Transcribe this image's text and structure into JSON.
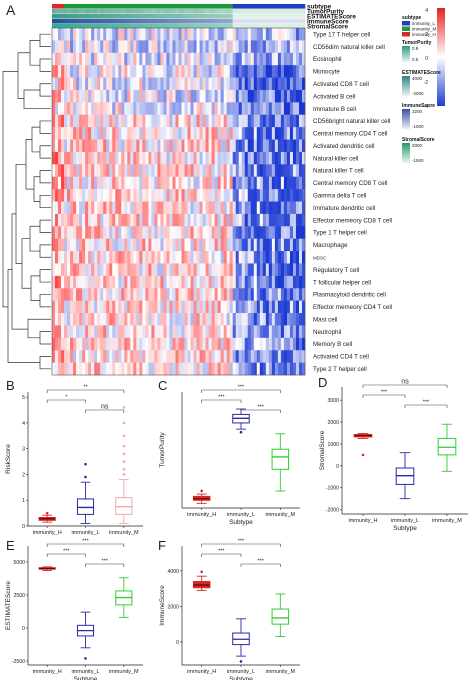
{
  "panel_labels": [
    "A",
    "B",
    "C",
    "D",
    "E",
    "F"
  ],
  "heatmap": {
    "annotation_rows": [
      "subtype",
      "TumorPurity",
      "ESTIMATEScore",
      "ImmuneScore",
      "StromalScore"
    ],
    "cell_types": [
      "Type 17 T helper cell",
      "CD56dim natural killer cell",
      "Eosinophil",
      "Monocyte",
      "Activated CD8 T cell",
      "Activated B cell",
      "Immature  B cell",
      "CD56bright natural killer cell",
      "Central memory CD4 T cell",
      "Activated dendritic cell",
      "Natural killer cell",
      "Natural killer T cell",
      "Central memory CD8 T cell",
      "Gamma delta T cell",
      "Immature dendritic cell",
      "Effector memeory CD8 T cell",
      "Type 1 T helper cell",
      "Macrophage",
      "MDSC",
      "Regulatory T cell",
      "T follicular helper cell",
      "Plasmacytoid dendritic cell",
      "Effector memeory CD4 T cell",
      "Mast cell",
      "Neutrophil",
      "Memory B cell",
      "Activated CD4 T cell",
      "Type 2 T helper cell"
    ],
    "legend": {
      "subtype": {
        "title": "subtype",
        "items": [
          "immunity_L",
          "immunity_M",
          "immunity_H"
        ],
        "colors": [
          "#1f3fbf",
          "#1a9a3a",
          "#d42a2a"
        ]
      },
      "tumorpurity": {
        "title": "TumorPurity",
        "ticks": [
          "0.9",
          "0.5"
        ]
      },
      "heat": {
        "ticks": [
          "4",
          "2",
          "0",
          "-2",
          "-4"
        ]
      },
      "estimate": {
        "title": "ESTIMATEScore",
        "ticks": [
          "4000",
          "-2000"
        ]
      },
      "immune": {
        "title": "ImmuneScore",
        "ticks": [
          "3200",
          "-1000"
        ]
      },
      "stromal": {
        "title": "StromalScore",
        "ticks": [
          "2000",
          "-1500"
        ]
      }
    },
    "colors": {
      "high": "#e52222",
      "mid": "#ffffff",
      "low": "#1c3fd0"
    }
  },
  "boxplots": [
    {
      "panel": "B",
      "ylabel": "RiskScore",
      "xlabel": "",
      "ylim": [
        0,
        5.2
      ],
      "yticks": [
        0,
        1,
        2,
        3,
        4,
        5
      ],
      "categories": [
        "immunity_H",
        "immunity_L",
        "immunity_M"
      ],
      "colors": [
        "#d42a2a",
        "#2a2aa6",
        "#f0a8a8"
      ],
      "boxes": [
        {
          "min": 0.15,
          "q1": 0.22,
          "median": 0.28,
          "q3": 0.33,
          "max": 0.42,
          "outliers": [
            0.5
          ]
        },
        {
          "min": 0.1,
          "q1": 0.45,
          "median": 0.72,
          "q3": 1.05,
          "max": 1.7,
          "outliers": [
            1.9,
            2.4
          ]
        },
        {
          "min": 0.1,
          "q1": 0.45,
          "median": 0.75,
          "q3": 1.1,
          "max": 1.8,
          "outliers": [
            2.0,
            2.2,
            2.5,
            2.8,
            3.1,
            3.5,
            4.0,
            4.6
          ]
        }
      ],
      "signif": [
        {
          "from": 0,
          "to": 2,
          "label": "**"
        },
        {
          "from": 0,
          "to": 1,
          "label": "*"
        },
        {
          "from": 1,
          "to": 2,
          "label": "ns"
        }
      ]
    },
    {
      "panel": "C",
      "ylabel": "TumorPurity",
      "xlabel": "Subtype",
      "ylim": [
        0.25,
        1.0
      ],
      "yticks": [],
      "categories": [
        "immunity_H",
        "immunity_L",
        "immunity_M"
      ],
      "colors": [
        "#d42a2a",
        "#2a2aa6",
        "#33cc33"
      ],
      "boxes": [
        {
          "min": 0.28,
          "q1": 0.3,
          "median": 0.31,
          "q3": 0.325,
          "max": 0.34,
          "outliers": [
            0.36
          ]
        },
        {
          "min": 0.76,
          "q1": 0.8,
          "median": 0.83,
          "q3": 0.855,
          "max": 0.89,
          "outliers": [
            0.74
          ]
        },
        {
          "min": 0.36,
          "q1": 0.5,
          "median": 0.58,
          "q3": 0.63,
          "max": 0.73,
          "outliers": []
        }
      ],
      "signif": [
        {
          "from": 0,
          "to": 2,
          "label": "***"
        },
        {
          "from": 0,
          "to": 1,
          "label": "***"
        },
        {
          "from": 1,
          "to": 2,
          "label": "***"
        }
      ]
    },
    {
      "panel": "D",
      "ylabel": "StromalScore",
      "xlabel": "Subtype",
      "ylim": [
        -2200,
        3600
      ],
      "yticks": [
        -2000,
        -1000,
        0,
        1000,
        2000,
        3000
      ],
      "categories": [
        "immunity_H",
        "immunity_L",
        "immunity_M"
      ],
      "colors": [
        "#d42a2a",
        "#2a2aa6",
        "#33cc33"
      ],
      "boxes": [
        {
          "min": 1250,
          "q1": 1320,
          "median": 1380,
          "q3": 1430,
          "max": 1480,
          "outliers": [
            500
          ]
        },
        {
          "min": -1500,
          "q1": -850,
          "median": -450,
          "q3": -100,
          "max": 600,
          "outliers": []
        },
        {
          "min": -250,
          "q1": 500,
          "median": 850,
          "q3": 1250,
          "max": 1900,
          "outliers": []
        }
      ],
      "signif": [
        {
          "from": 0,
          "to": 2,
          "label": "ns"
        },
        {
          "from": 0,
          "to": 1,
          "label": "***"
        },
        {
          "from": 1,
          "to": 2,
          "label": "***"
        }
      ]
    },
    {
      "panel": "E",
      "ylabel": "ESTIMATEScore",
      "xlabel": "Subtype",
      "ylim": [
        -2800,
        6200
      ],
      "yticks": [
        -2500,
        0,
        2500,
        5000
      ],
      "categories": [
        "immunity_H",
        "immunity_L",
        "immunity_M"
      ],
      "colors": [
        "#d42a2a",
        "#2a2aa6",
        "#33cc33"
      ],
      "boxes": [
        {
          "min": 4350,
          "q1": 4450,
          "median": 4500,
          "q3": 4560,
          "max": 4620,
          "outliers": []
        },
        {
          "min": -1500,
          "q1": -600,
          "median": -200,
          "q3": 200,
          "max": 1200,
          "outliers": [
            -2300
          ]
        },
        {
          "min": 800,
          "q1": 1750,
          "median": 2300,
          "q3": 2800,
          "max": 3800,
          "outliers": []
        }
      ],
      "signif": [
        {
          "from": 0,
          "to": 2,
          "label": "***"
        },
        {
          "from": 0,
          "to": 1,
          "label": "***"
        },
        {
          "from": 1,
          "to": 2,
          "label": "***"
        }
      ]
    },
    {
      "panel": "F",
      "ylabel": "ImmuneScore",
      "xlabel": "Subtype",
      "ylim": [
        -1300,
        5400
      ],
      "yticks": [
        0,
        2000,
        4000
      ],
      "categories": [
        "immunity_H",
        "immunity_L",
        "immunity_M"
      ],
      "colors": [
        "#d42a2a",
        "#2a2aa6",
        "#33cc33"
      ],
      "boxes": [
        {
          "min": 2900,
          "q1": 3050,
          "median": 3200,
          "q3": 3400,
          "max": 3700,
          "outliers": [
            3950
          ]
        },
        {
          "min": -800,
          "q1": -150,
          "median": 150,
          "q3": 500,
          "max": 1300,
          "outliers": [
            -1100
          ]
        },
        {
          "min": 300,
          "q1": 1000,
          "median": 1350,
          "q3": 1850,
          "max": 2700,
          "outliers": []
        }
      ],
      "signif": [
        {
          "from": 0,
          "to": 2,
          "label": "***"
        },
        {
          "from": 0,
          "to": 1,
          "label": "***"
        },
        {
          "from": 1,
          "to": 2,
          "label": "***"
        }
      ]
    }
  ],
  "chart_data": [
    {
      "type": "heatmap",
      "rows": [
        "Type 17 T helper cell",
        "CD56dim natural killer cell",
        "Eosinophil",
        "Monocyte",
        "Activated CD8 T cell",
        "Activated B cell",
        "Immature  B cell",
        "CD56bright natural killer cell",
        "Central memory CD4 T cell",
        "Activated dendritic cell",
        "Natural killer cell",
        "Natural killer T cell",
        "Central memory CD8 T cell",
        "Gamma delta T cell",
        "Immature dendritic cell",
        "Effector memeory CD8 T cell",
        "Type 1 T helper cell",
        "Macrophage",
        "MDSC",
        "Regulatory T cell",
        "T follicular helper cell",
        "Plasmacytoid dendritic cell",
        "Effector memeory CD4 T cell",
        "Mast cell",
        "Neutrophil",
        "Memory B cell",
        "Activated CD4 T cell",
        "Type 2 T helper cell"
      ],
      "column_groups": [
        "immunity_H",
        "immunity_M",
        "immunity_L"
      ],
      "scale": [
        -4,
        4
      ]
    },
    {
      "type": "box",
      "panel": "B",
      "ylabel": "RiskScore",
      "categories": [
        "immunity_H",
        "immunity_L",
        "immunity_M"
      ],
      "medians": [
        0.28,
        0.72,
        0.75
      ]
    },
    {
      "type": "box",
      "panel": "C",
      "ylabel": "TumorPurity",
      "categories": [
        "immunity_H",
        "immunity_L",
        "immunity_M"
      ],
      "medians": [
        0.31,
        0.83,
        0.58
      ]
    },
    {
      "type": "box",
      "panel": "D",
      "ylabel": "StromalScore",
      "categories": [
        "immunity_H",
        "immunity_L",
        "immunity_M"
      ],
      "medians": [
        1380,
        -450,
        850
      ]
    },
    {
      "type": "box",
      "panel": "E",
      "ylabel": "ESTIMATEScore",
      "categories": [
        "immunity_H",
        "immunity_L",
        "immunity_M"
      ],
      "medians": [
        4500,
        -200,
        2300
      ]
    },
    {
      "type": "box",
      "panel": "F",
      "ylabel": "ImmuneScore",
      "categories": [
        "immunity_H",
        "immunity_L",
        "immunity_M"
      ],
      "medians": [
        3200,
        150,
        1350
      ]
    }
  ]
}
